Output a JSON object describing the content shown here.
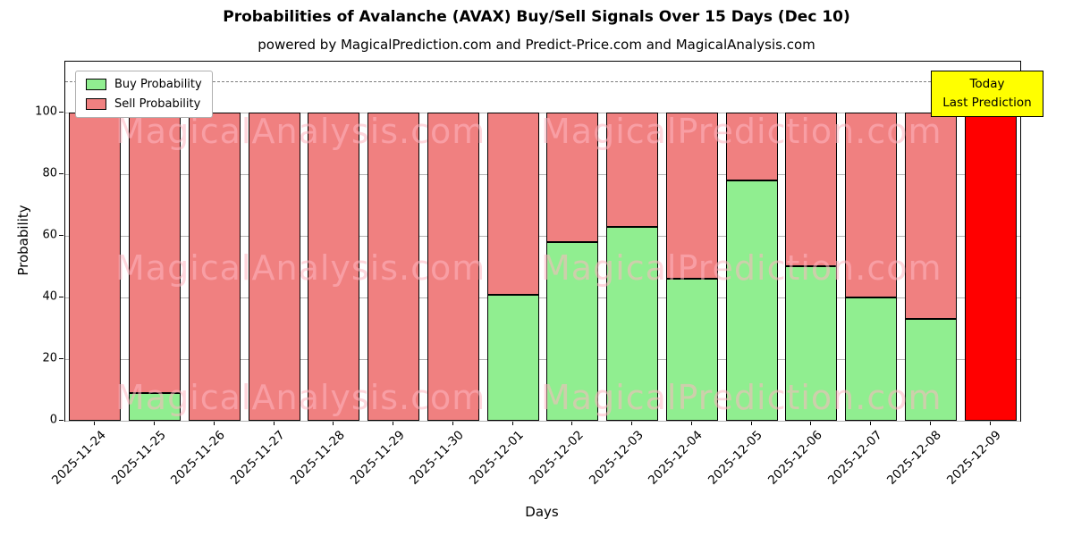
{
  "title": "Probabilities of Avalanche (AVAX) Buy/Sell Signals Over 15 Days (Dec 10)",
  "subtitle": "powered by MagicalPrediction.com and Predict-Price.com and MagicalAnalysis.com",
  "annotation": {
    "line1": "Today",
    "line2": "Last Prediction"
  },
  "legend": [
    {
      "label": "Buy Probability",
      "color": "#90EE90"
    },
    {
      "label": "Sell Probability",
      "color": "#F08080"
    }
  ],
  "watermarks": [
    "MagicalAnalysis.com",
    "MagicalPrediction.com"
  ],
  "chart_data": {
    "type": "bar",
    "stacked": true,
    "title": "Probabilities of Avalanche (AVAX) Buy/Sell Signals Over 15 Days (Dec 10)",
    "xlabel": "Days",
    "ylabel": "Probability",
    "categories": [
      "2025-11-24",
      "2025-11-25",
      "2025-11-26",
      "2025-11-27",
      "2025-11-28",
      "2025-11-29",
      "2025-11-30",
      "2025-12-01",
      "2025-12-02",
      "2025-12-03",
      "2025-12-04",
      "2025-12-05",
      "2025-12-06",
      "2025-12-07",
      "2025-12-08",
      "2025-12-09"
    ],
    "series": [
      {
        "name": "Buy Probability",
        "color": "#90EE90",
        "values": [
          0,
          9,
          0,
          0,
          0,
          0,
          0,
          41,
          58,
          63,
          46,
          78,
          50,
          40,
          33,
          0
        ]
      },
      {
        "name": "Sell Probability",
        "color": "#F08080",
        "values": [
          100,
          91,
          100,
          100,
          100,
          100,
          100,
          59,
          42,
          37,
          54,
          22,
          50,
          60,
          67,
          100
        ]
      }
    ],
    "today_index": 15,
    "today_color": "#FF0000",
    "ylim": [
      0,
      116.5
    ],
    "yticks": [
      0,
      20,
      40,
      60,
      80,
      100
    ],
    "dashed_line_y": 110,
    "grid": true,
    "legend_position": "upper left"
  }
}
